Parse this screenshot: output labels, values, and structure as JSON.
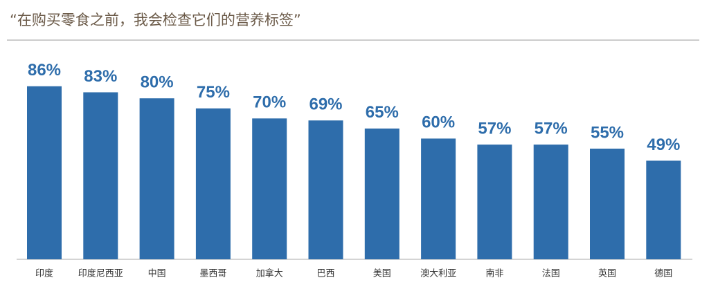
{
  "chart_data": {
    "type": "bar",
    "title": "“在购买零食之前，我会检查它们的营养标签”",
    "categories": [
      "印度",
      "印度尼西亚",
      "中国",
      "墨西哥",
      "加拿大",
      "巴西",
      "美国",
      "澳大利亚",
      "南非",
      "法国",
      "英国",
      "德国"
    ],
    "values": [
      86,
      83,
      80,
      75,
      70,
      69,
      65,
      60,
      57,
      57,
      55,
      49
    ],
    "value_labels": [
      "86%",
      "83%",
      "80%",
      "75%",
      "70%",
      "69%",
      "65%",
      "60%",
      "57%",
      "57%",
      "55%",
      "49%"
    ],
    "color": "#2e6dab"
  }
}
